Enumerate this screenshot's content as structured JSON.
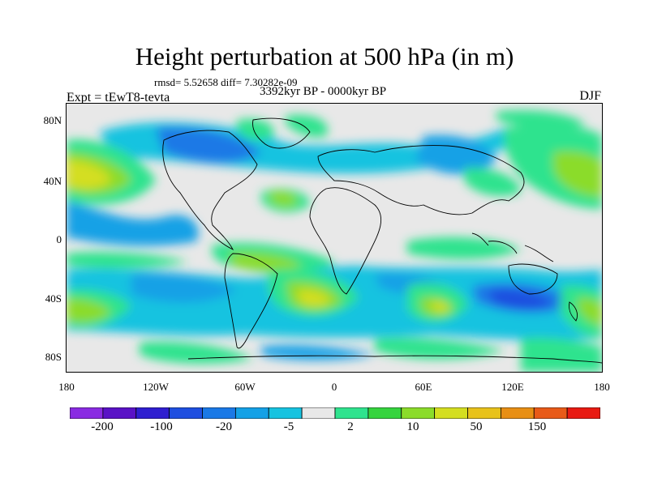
{
  "title": "Height perturbation at 500 hPa (in m)",
  "rmsd_line": "rmsd= 5.52658 diff= 7.30282e-09",
  "period": "3392kyr BP - 0000kyr BP",
  "experiment": "Expt = tEwT8-tevta",
  "season": "DJF",
  "lat_labels": [
    "80N",
    "40N",
    "0",
    "40S",
    "80S"
  ],
  "lon_labels": [
    "180",
    "120W",
    "60W",
    "0",
    "60E",
    "120E",
    "180"
  ],
  "colorbar": {
    "colors": [
      "#8a2be2",
      "#5a12c6",
      "#2f1fd0",
      "#1f4fe0",
      "#1a79e6",
      "#14a1e6",
      "#17c3e0",
      "#e8e8e8",
      "#2fe38e",
      "#36d43e",
      "#8bdc2a",
      "#d4de20",
      "#e8c21a",
      "#e88f14",
      "#e85a18",
      "#e81a12"
    ],
    "labels": [
      "-200",
      "-100",
      "-20",
      "-5",
      "2",
      "10",
      "50",
      "150"
    ]
  }
}
